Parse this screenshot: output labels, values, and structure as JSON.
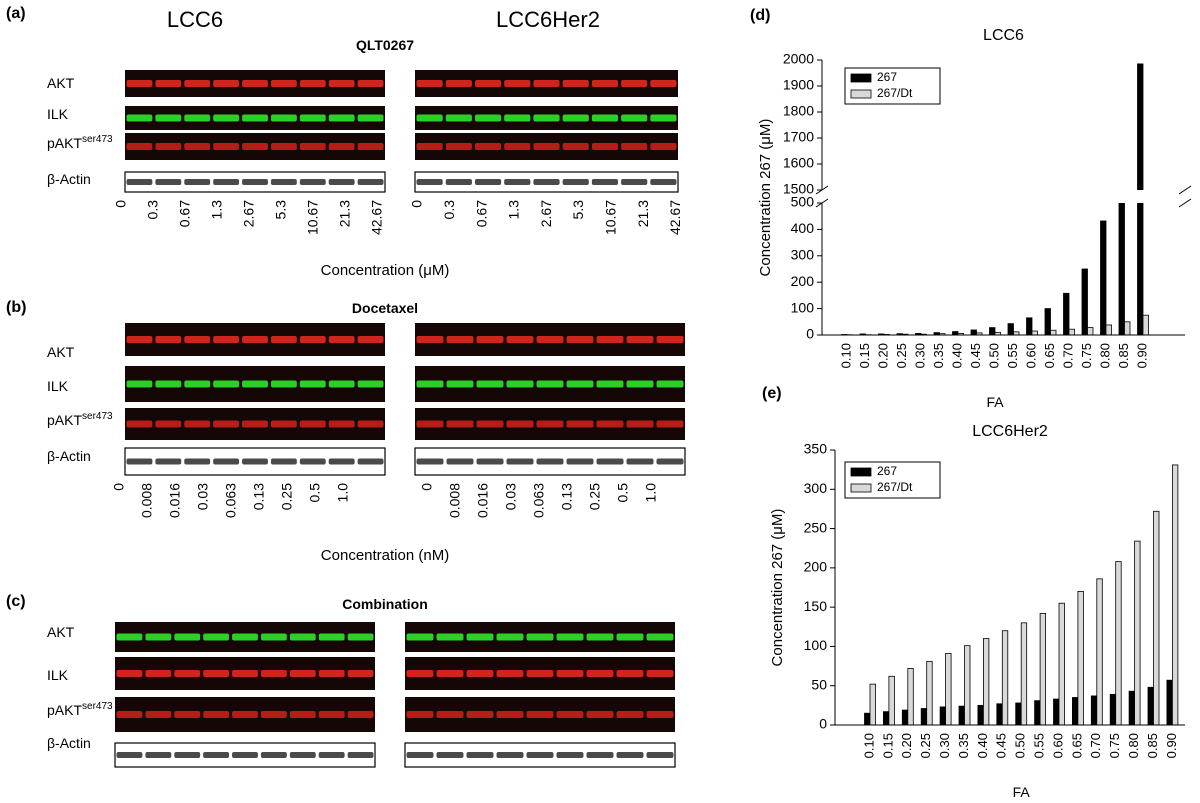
{
  "headers": [
    "LCC6",
    "LCC6Her2"
  ],
  "blots": [
    {
      "label": "(a)",
      "title": "QLT0267",
      "rows": [
        {
          "name": "AKT",
          "color": "#e8281e"
        },
        {
          "name": "ILK",
          "color": "#2ee62a"
        },
        {
          "name": "pAKT",
          "sup": "ser473",
          "color": "#c8201a"
        },
        {
          "name": "β-Actin",
          "color": "#2a2a2a"
        }
      ],
      "concentrations": [
        "0",
        "0.3",
        "0.67",
        "1.3",
        "2.67",
        "5.3",
        "10.67",
        "21.3",
        "42.67"
      ],
      "axis_label": "Concentration (μM)"
    },
    {
      "label": "(b)",
      "title": "Docetaxel",
      "rows": [
        {
          "name": "AKT",
          "color": "#e8281e"
        },
        {
          "name": "ILK",
          "color": "#2ee62a"
        },
        {
          "name": "pAKT",
          "sup": "ser473",
          "color": "#c8201a"
        },
        {
          "name": "β-Actin",
          "color": "#2a2a2a"
        }
      ],
      "concentrations": [
        "0",
        "0.008",
        "0.016",
        "0.03",
        "0.063",
        "0.13",
        "0.25",
        "0.5",
        "1.0"
      ],
      "axis_label": "Concentration (nM)"
    },
    {
      "label": "(c)",
      "title": "Combination",
      "rows": [
        {
          "name": "AKT",
          "color": "#2ee62a"
        },
        {
          "name": "ILK",
          "color": "#e8281e"
        },
        {
          "name": "pAKT",
          "sup": "ser473",
          "color": "#c8201a"
        },
        {
          "name": "β-Actin",
          "color": "#2a2a2a"
        }
      ]
    }
  ],
  "chart_data": [
    {
      "type": "bar",
      "label": "(d)",
      "title": "LCC6",
      "xlabel": "FA",
      "ylabel": "Concentration 267 (μM)",
      "categories": [
        "0.10",
        "0.15",
        "0.20",
        "0.25",
        "0.30",
        "0.35",
        "0.40",
        "0.45",
        "0.50",
        "0.55",
        "0.60",
        "0.65",
        "0.70",
        "0.75",
        "0.80",
        "0.85",
        "0.90"
      ],
      "series": [
        {
          "name": "267",
          "color": "#000000",
          "values": [
            2,
            4,
            4,
            5,
            6,
            9,
            13,
            19,
            28,
            43,
            65,
            100,
            158,
            250,
            432,
            500,
            1985
          ]
        },
        {
          "name": "267/Dt",
          "color": "#d9d9d9",
          "values": [
            1,
            1,
            2,
            3,
            3,
            5,
            6,
            8,
            10,
            12,
            15,
            18,
            22,
            28,
            38,
            50,
            75
          ]
        }
      ],
      "ylim": [
        0,
        2000
      ],
      "y_break": [
        500,
        1500
      ],
      "yticks": [
        0,
        100,
        200,
        300,
        400,
        500,
        1500,
        1600,
        1700,
        1800,
        1900,
        2000
      ],
      "legend": "upper left"
    },
    {
      "type": "bar",
      "label": "(e)",
      "title": "LCC6Her2",
      "xlabel": "FA",
      "ylabel": "Concentration 267 (μM)",
      "categories": [
        "0.10",
        "0.15",
        "0.20",
        "0.25",
        "0.30",
        "0.35",
        "0.40",
        "0.45",
        "0.50",
        "0.55",
        "0.60",
        "0.65",
        "0.70",
        "0.75",
        "0.80",
        "0.85",
        "0.90"
      ],
      "series": [
        {
          "name": "267",
          "color": "#000000",
          "values": [
            15,
            17,
            19,
            21,
            23,
            24,
            25,
            27,
            28,
            31,
            33,
            35,
            37,
            39,
            43,
            48,
            57
          ]
        },
        {
          "name": "267/Dt",
          "color": "#d9d9d9",
          "values": [
            52,
            62,
            72,
            81,
            91,
            101,
            110,
            120,
            130,
            142,
            155,
            170,
            186,
            208,
            234,
            272,
            331
          ]
        }
      ],
      "ylim": [
        0,
        350
      ],
      "yticks": [
        0,
        50,
        100,
        150,
        200,
        250,
        300,
        350
      ],
      "legend": "upper left"
    }
  ]
}
